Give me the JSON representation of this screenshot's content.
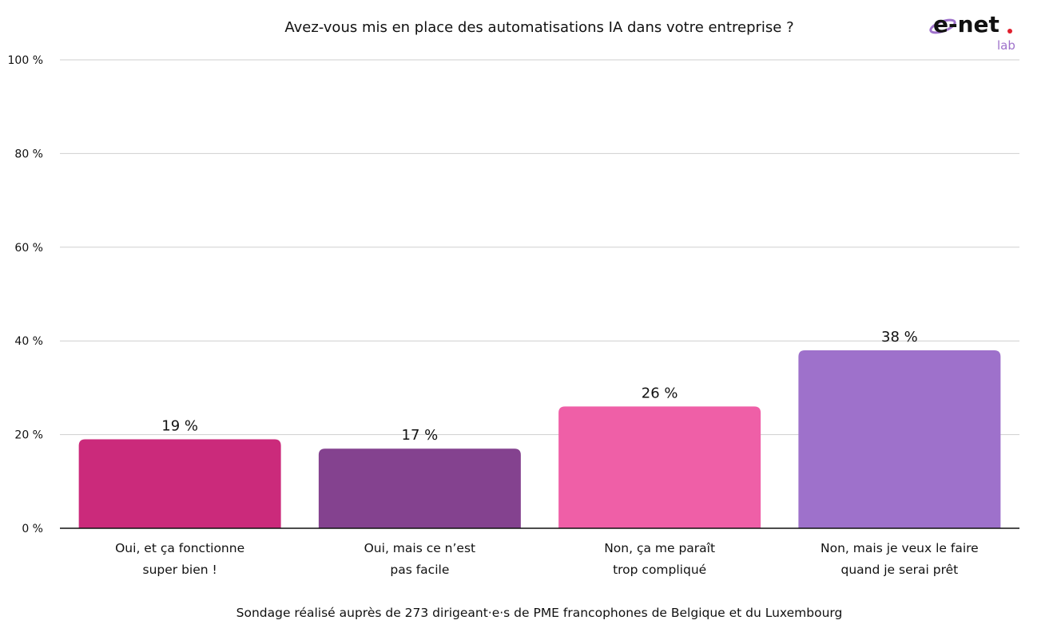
{
  "chart_data": {
    "type": "bar",
    "title": "Avez-vous mis en place des automatisations IA dans votre entreprise ?",
    "categories": [
      [
        "Oui, et ça fonctionne",
        "super bien !"
      ],
      [
        "Oui, mais ce n’est",
        "pas facile"
      ],
      [
        "Non, ça me paraît",
        "trop compliqué"
      ],
      [
        "Non, mais je veux le faire",
        "quand je serai prêt"
      ]
    ],
    "values": [
      19,
      17,
      26,
      38
    ],
    "data_labels": [
      "19 %",
      "17 %",
      "26 %",
      "38 %"
    ],
    "colors": [
      "#CB2A7B",
      "#84428F",
      "#EF5FA7",
      "#9E71CB"
    ],
    "ylim": [
      0,
      100
    ],
    "yticks": [
      0,
      20,
      40,
      60,
      80,
      100
    ],
    "ytick_labels": [
      "0 %",
      "20 %",
      "40 %",
      "60 %",
      "80 %",
      "100 %"
    ],
    "grid": true,
    "xlabel": "",
    "ylabel": ""
  },
  "footnote": "Sondage réalisé auprès de 273 dirigeant·e·s de PME francophones de Belgique et du Luxembourg",
  "logo": {
    "text": "e-net",
    "subtext": "lab",
    "accent": "#E0202E",
    "color": "#9E71CB"
  }
}
